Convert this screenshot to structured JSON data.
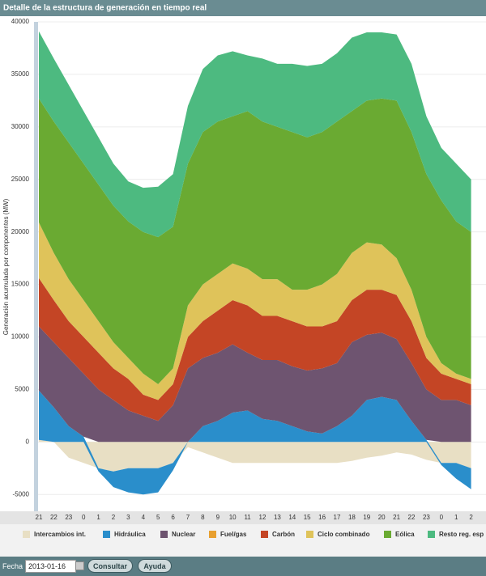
{
  "chart_data": {
    "type": "stacked_area",
    "title": "Detalle de la estructura de generación en tiempo real",
    "ylabel": "Generación acumulada por componentes (MW)",
    "categories": [
      "21",
      "22",
      "23",
      "0",
      "1",
      "2",
      "3",
      "4",
      "5",
      "6",
      "7",
      "8",
      "9",
      "10",
      "11",
      "12",
      "13",
      "14",
      "15",
      "16",
      "17",
      "18",
      "19",
      "20",
      "21",
      "22",
      "23",
      "0",
      "1",
      "2"
    ],
    "ylim": [
      -6600,
      40000
    ],
    "yticks": [
      -5000,
      0,
      5000,
      10000,
      15000,
      20000,
      25000,
      30000,
      35000,
      40000
    ],
    "grid": true,
    "series": [
      {
        "name": "Intercambios int.",
        "color": "#e8dfc4",
        "values": [
          200,
          0,
          -1500,
          -2000,
          -2500,
          -2800,
          -2500,
          -2500,
          -2500,
          -2000,
          -500,
          -1000,
          -1500,
          -2000,
          -2000,
          -2000,
          -2000,
          -2000,
          -2000,
          -2000,
          -2000,
          -1800,
          -1500,
          -1300,
          -1000,
          -1200,
          -1700,
          -2000,
          -2000,
          -2500
        ]
      },
      {
        "name": "Hidráulica",
        "color": "#2a8ecb",
        "values": [
          4700,
          3300,
          1500,
          500,
          -300,
          -1500,
          -2300,
          -2500,
          -2300,
          -700,
          0,
          1500,
          2000,
          2800,
          3000,
          2200,
          2000,
          1500,
          1000,
          800,
          1500,
          2500,
          4000,
          4300,
          4000,
          2000,
          200,
          -200,
          -1500,
          -2000
        ]
      },
      {
        "name": "Nuclear",
        "color": "#6e5470",
        "values": [
          6100,
          6200,
          6500,
          6000,
          5000,
          4000,
          3000,
          2500,
          2000,
          3500,
          7000,
          6500,
          6500,
          6500,
          5500,
          5600,
          5800,
          5700,
          5800,
          6200,
          6000,
          7000,
          6200,
          6100,
          5800,
          5500,
          4800,
          4000,
          4000,
          3500
        ]
      },
      {
        "name": "Fuel/gas",
        "color": "#e8a030",
        "values": [
          0,
          0,
          0,
          0,
          0,
          0,
          0,
          0,
          0,
          0,
          0,
          0,
          0,
          0,
          0,
          0,
          0,
          0,
          0,
          0,
          0,
          0,
          0,
          0,
          0,
          0,
          0,
          0,
          0,
          0
        ]
      },
      {
        "name": "Carbón",
        "color": "#c44525",
        "values": [
          4600,
          4000,
          3500,
          3500,
          3500,
          3000,
          3000,
          2000,
          2000,
          2000,
          3000,
          3500,
          4000,
          4200,
          4500,
          4200,
          4200,
          4300,
          4200,
          4000,
          4000,
          4000,
          4300,
          4100,
          4200,
          4000,
          3000,
          2500,
          2000,
          2000
        ]
      },
      {
        "name": "Ciclo combinado",
        "color": "#dfc35a",
        "values": [
          5300,
          4500,
          4000,
          3500,
          3000,
          2500,
          2000,
          2000,
          1500,
          1500,
          3000,
          3500,
          3500,
          3500,
          3500,
          3500,
          3500,
          3000,
          3500,
          4000,
          4500,
          4500,
          4500,
          4300,
          3500,
          3000,
          2000,
          1000,
          500,
          500
        ]
      },
      {
        "name": "Eólica",
        "color": "#6aaa32",
        "values": [
          11800,
          12500,
          13000,
          13000,
          13000,
          13000,
          13000,
          13500,
          14000,
          13500,
          13500,
          14500,
          14500,
          14000,
          15000,
          15000,
          14500,
          15000,
          14500,
          14500,
          14500,
          13500,
          13500,
          13900,
          15000,
          15000,
          15500,
          15500,
          14500,
          14000
        ]
      },
      {
        "name": "Resto reg. esp",
        "color": "#4dba80",
        "values": [
          6400,
          6000,
          5500,
          5000,
          4500,
          4000,
          3800,
          4200,
          4800,
          5000,
          5500,
          6000,
          6300,
          6200,
          5300,
          6000,
          6000,
          6500,
          6800,
          6500,
          6500,
          7000,
          6500,
          6300,
          6300,
          6500,
          5500,
          5000,
          5500,
          5000
        ]
      }
    ]
  },
  "controls": {
    "date_label": "Fecha",
    "date": "2013-01-16",
    "buttons": [
      "Consultar",
      "Ayuda"
    ]
  }
}
